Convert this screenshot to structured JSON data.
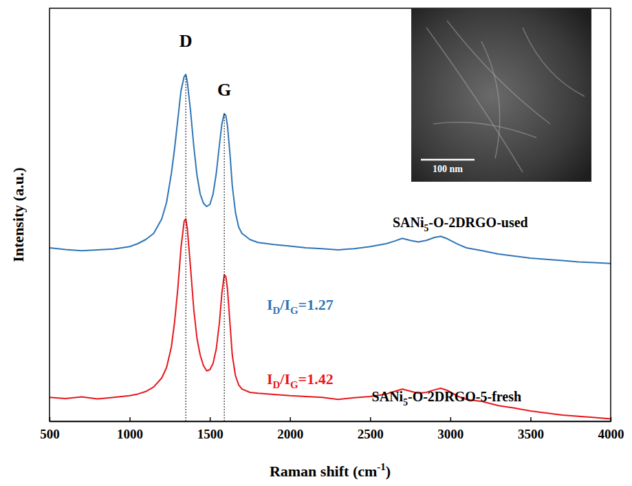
{
  "chart_data": {
    "type": "line",
    "x_label": [
      "Raman shift (cm",
      "-1",
      ")"
    ],
    "y_label": "Intensity (a.u.)",
    "xlim": [
      500,
      4000
    ],
    "xticks": [
      500,
      1000,
      1500,
      2000,
      2500,
      3000,
      3500,
      4000
    ],
    "ylim": [
      0,
      100
    ],
    "tick_labels": "x",
    "grid": false,
    "x": [
      500,
      600,
      700,
      800,
      900,
      1000,
      1050,
      1100,
      1150,
      1200,
      1230,
      1260,
      1280,
      1300,
      1320,
      1340,
      1350,
      1360,
      1380,
      1400,
      1420,
      1440,
      1460,
      1480,
      1500,
      1520,
      1540,
      1560,
      1575,
      1590,
      1600,
      1610,
      1625,
      1640,
      1660,
      1680,
      1700,
      1750,
      1800,
      1900,
      2000,
      2100,
      2200,
      2300,
      2400,
      2500,
      2600,
      2650,
      2700,
      2750,
      2800,
      2850,
      2900,
      2940,
      2980,
      3050,
      3100,
      3200,
      3300,
      3400,
      3500,
      3600,
      3700,
      3800,
      3900,
      4000
    ],
    "series": [
      {
        "label": [
          "SANi",
          "5",
          "-O-2DRGO-used"
        ],
        "ratio_label": [
          "I",
          "D",
          "/I",
          "G",
          "=1.27"
        ],
        "color": "#2e75b6",
        "values": [
          42,
          41.6,
          41.3,
          41.5,
          41.7,
          42.3,
          43,
          44,
          45.5,
          49,
          53,
          60,
          66,
          73,
          80,
          83.5,
          84,
          82,
          75,
          66.5,
          59.5,
          55,
          52.8,
          52,
          52.5,
          55,
          60,
          67,
          72,
          74.5,
          74,
          71.5,
          65,
          57,
          50.5,
          47,
          45.5,
          44,
          43.3,
          42.8,
          42.4,
          42,
          41.8,
          41.5,
          41.8,
          42.3,
          43,
          43.6,
          44.3,
          43.8,
          43.4,
          43.8,
          44.5,
          44.8,
          44.2,
          42.8,
          42,
          41.3,
          40.5,
          40,
          39.5,
          39.2,
          38.9,
          38.6,
          38.4,
          38.2
        ]
      },
      {
        "label": [
          "SANi",
          "5",
          "-O-2DRGO-5-fresh"
        ],
        "ratio_label": [
          "I",
          "D",
          "/I",
          "G",
          "=1.42"
        ],
        "color": "#e8161b",
        "values": [
          5.8,
          5.5,
          5.9,
          5.4,
          5.8,
          6.2,
          6.6,
          7.2,
          8.3,
          10.5,
          13,
          18,
          24,
          32,
          42,
          48.5,
          49,
          46.5,
          37,
          27,
          20,
          16,
          13.5,
          12.2,
          12.5,
          14,
          17.5,
          24,
          31,
          35.5,
          35,
          32,
          24,
          16,
          11,
          8.8,
          7.8,
          7,
          6.8,
          6.5,
          6.2,
          6,
          5.8,
          5.3,
          5.7,
          6,
          6.6,
          7.2,
          7.8,
          7.3,
          6.8,
          7,
          7.6,
          8,
          7.5,
          6,
          5.3,
          4.8,
          3.8,
          3.2,
          2.5,
          2,
          1.5,
          1.2,
          0.9,
          0.6
        ]
      }
    ],
    "peak_labels": [
      {
        "text": "D",
        "x": 1350
      },
      {
        "text": "G",
        "x": 1590
      }
    ],
    "inset": {
      "scale_bar": "100 nm"
    }
  }
}
